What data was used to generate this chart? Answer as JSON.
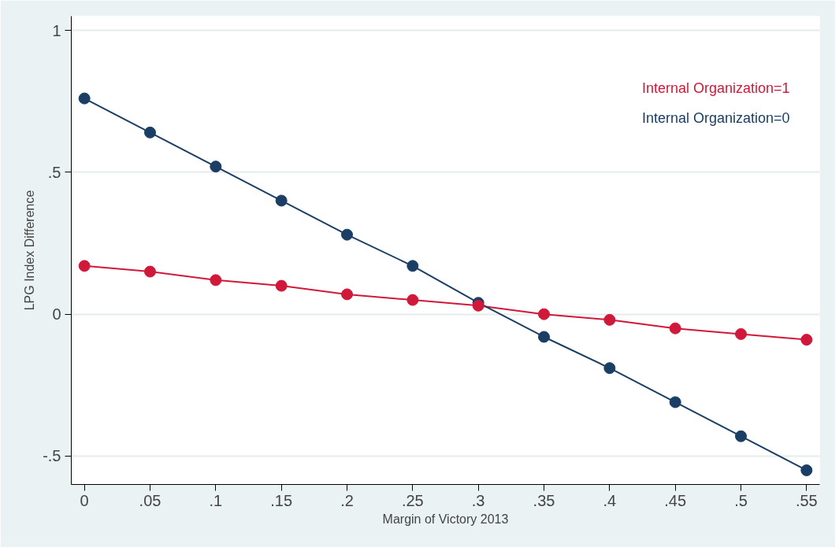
{
  "chart_data": {
    "type": "line",
    "xlabel": "Margin of Victory 2013",
    "ylabel": "LPG Index Difference",
    "x": [
      0,
      0.05,
      0.1,
      0.15,
      0.2,
      0.25,
      0.3,
      0.35,
      0.4,
      0.45,
      0.5,
      0.55
    ],
    "series": [
      {
        "name": "Internal Organization=1",
        "color": "#d0193a",
        "values": [
          0.17,
          0.15,
          0.12,
          0.1,
          0.07,
          0.05,
          0.03,
          0.0,
          -0.02,
          -0.05,
          -0.07,
          -0.09
        ]
      },
      {
        "name": "Internal Organization=0",
        "color": "#1b3e64",
        "values": [
          0.76,
          0.64,
          0.52,
          0.4,
          0.28,
          0.17,
          0.04,
          -0.08,
          -0.19,
          -0.31,
          -0.43,
          -0.55
        ]
      }
    ],
    "xlim": [
      -0.01,
      0.56
    ],
    "ylim": [
      -0.6,
      1.05
    ],
    "xticks": [
      0,
      {
        "value": 0.05,
        "label": ".05"
      },
      {
        "value": 0.1,
        "label": ".1"
      },
      {
        "value": 0.15,
        "label": ".15"
      },
      {
        "value": 0.2,
        "label": ".2"
      },
      {
        "value": 0.25,
        "label": ".25"
      },
      {
        "value": 0.3,
        "label": ".3"
      },
      {
        "value": 0.35,
        "label": ".35"
      },
      {
        "value": 0.4,
        "label": ".4"
      },
      {
        "value": 0.45,
        "label": ".45"
      },
      {
        "value": 0.5,
        "label": ".5"
      },
      {
        "value": 0.55,
        "label": ".55"
      }
    ],
    "yticks": [
      {
        "value": -0.5,
        "label": "-.5"
      },
      0,
      {
        "value": 0.5,
        "label": ".5"
      },
      1
    ],
    "grid": "y",
    "marker": "circle",
    "line_style": "solid"
  }
}
